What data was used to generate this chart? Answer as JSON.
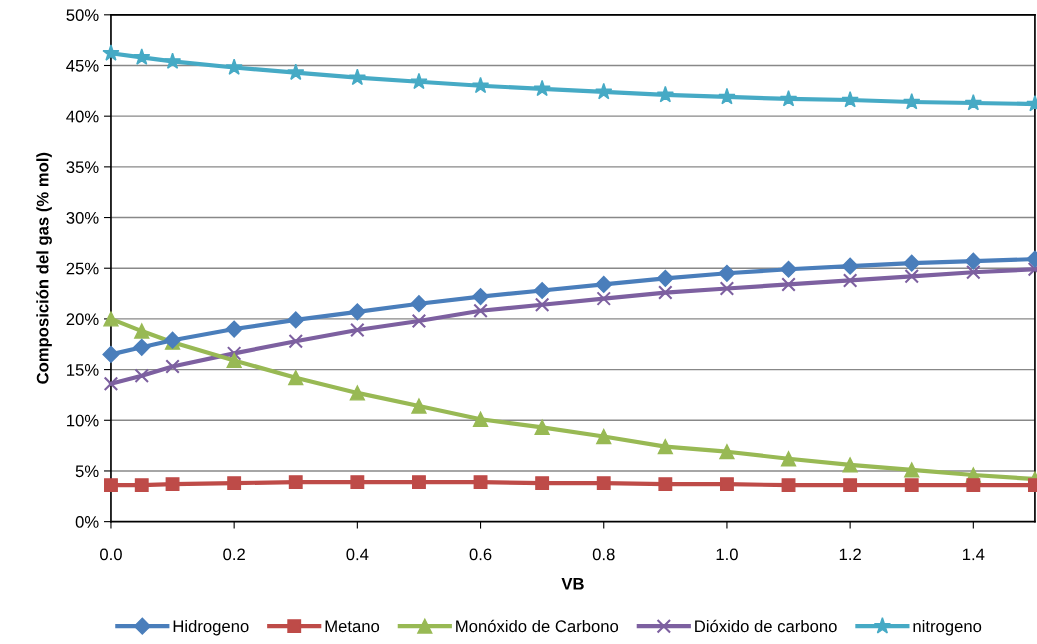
{
  "chart_data": {
    "type": "line",
    "xlabel": "VB",
    "ylabel": "Composición del gas (% mol)",
    "x": [
      0,
      0.05,
      0.1,
      0.2,
      0.3,
      0.4,
      0.5,
      0.6,
      0.7,
      0.8,
      0.9,
      1.0,
      1.1,
      1.2,
      1.3,
      1.4,
      1.5
    ],
    "series": [
      {
        "name": "Hidrogeno",
        "color": "#4a7ebb",
        "marker": "diamond",
        "values": [
          16.5,
          17.2,
          17.9,
          19.0,
          19.9,
          20.7,
          21.5,
          22.2,
          22.8,
          23.4,
          24.0,
          24.5,
          24.9,
          25.2,
          25.5,
          25.7,
          25.9
        ]
      },
      {
        "name": "Metano",
        "color": "#be4b48",
        "marker": "square",
        "values": [
          3.6,
          3.6,
          3.7,
          3.8,
          3.9,
          3.9,
          3.9,
          3.9,
          3.8,
          3.8,
          3.7,
          3.7,
          3.6,
          3.6,
          3.6,
          3.6,
          3.6
        ]
      },
      {
        "name": "Monóxido de Carbono",
        "color": "#98b954",
        "marker": "triangle",
        "values": [
          20.0,
          18.8,
          17.7,
          15.9,
          14.2,
          12.7,
          11.4,
          10.1,
          9.3,
          8.4,
          7.4,
          6.9,
          6.2,
          5.6,
          5.1,
          4.6,
          4.2
        ]
      },
      {
        "name": "Dióxido de carbono",
        "color": "#7d60a0",
        "marker": "cross",
        "values": [
          13.6,
          14.4,
          15.3,
          16.6,
          17.8,
          18.9,
          19.8,
          20.8,
          21.4,
          22.0,
          22.6,
          23.0,
          23.4,
          23.8,
          24.2,
          24.6,
          24.9
        ]
      },
      {
        "name": "nitrogeno",
        "color": "#46aac5",
        "marker": "star",
        "values": [
          46.2,
          45.8,
          45.4,
          44.8,
          44.3,
          43.8,
          43.4,
          43.0,
          42.7,
          42.4,
          42.1,
          41.9,
          41.7,
          41.6,
          41.4,
          41.3,
          41.2
        ]
      }
    ],
    "xlim": [
      0,
      1.5
    ],
    "xticks": [
      {
        "value": 0,
        "label": "0.0"
      },
      {
        "value": 0.2,
        "label": "0.2"
      },
      {
        "value": 0.4,
        "label": "0.4"
      },
      {
        "value": 0.6,
        "label": "0.6"
      },
      {
        "value": 0.8,
        "label": "0.8"
      },
      {
        "value": 1.0,
        "label": "1.0"
      },
      {
        "value": 1.2,
        "label": "1.2"
      },
      {
        "value": 1.4,
        "label": "1.4"
      }
    ],
    "ylim": [
      0,
      50
    ],
    "yticks": [
      {
        "value": 0,
        "label": "0%"
      },
      {
        "value": 5,
        "label": "5%"
      },
      {
        "value": 10,
        "label": "10%"
      },
      {
        "value": 15,
        "label": "15%"
      },
      {
        "value": 20,
        "label": "20%"
      },
      {
        "value": 25,
        "label": "25%"
      },
      {
        "value": 30,
        "label": "30%"
      },
      {
        "value": 35,
        "label": "35%"
      },
      {
        "value": 40,
        "label": "40%"
      },
      {
        "value": 45,
        "label": "45%"
      },
      {
        "value": 50,
        "label": "50%"
      }
    ],
    "grid": "y",
    "legend": "bottom",
    "line_style": "solid"
  }
}
